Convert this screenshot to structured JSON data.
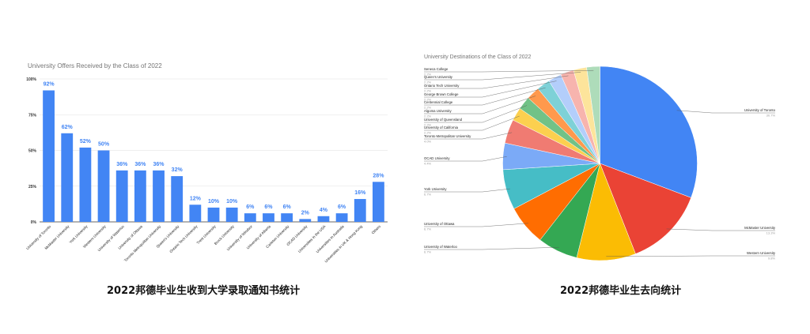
{
  "captions": {
    "left": "2022邦德毕业生收到大学录取通知书统计",
    "right": "2022邦德毕业生去向统计"
  },
  "chart_data": [
    {
      "type": "bar",
      "title": "University Offers Received by the Class of 2022",
      "categories": [
        "University of Toronto",
        "McMaster University",
        "York University",
        "Western University",
        "University of Waterloo",
        "University of Ottawa",
        "Toronto Metropolitan University",
        "Queen's University",
        "Ontario Tech University",
        "Trent University",
        "Brock University",
        "University of Windsor",
        "University of Alberta",
        "Carleton University",
        "OCAD University",
        "Universities in the USA",
        "Universities in Australia",
        "Universities in UK & Hong Kong",
        "Others"
      ],
      "values": [
        92,
        62,
        52,
        50,
        36,
        36,
        36,
        32,
        12,
        10,
        10,
        6,
        6,
        6,
        2,
        4,
        6,
        16,
        28
      ],
      "data_labels": [
        "92%",
        "62%",
        "52%",
        "50%",
        "36%",
        "36%",
        "36%",
        "32%",
        "12%",
        "10%",
        "10%",
        "6%",
        "6%",
        "6%",
        "2%",
        "4%",
        "6%",
        "16%",
        "28%"
      ],
      "yticks": [
        "0%",
        "25%",
        "50%",
        "75%",
        "100%"
      ],
      "ylim": [
        0,
        100
      ],
      "grid": true,
      "color": "#4285f4",
      "label_color": "#4285f4"
    },
    {
      "type": "pie",
      "title": "University Destinations of the Class of 2022",
      "start": "top",
      "slices": [
        {
          "label": "University of Toronto",
          "pct_text": "30.7%",
          "value": 30.7,
          "color": "#4285f4",
          "side": "right"
        },
        {
          "label": "McMaster University",
          "pct_text": "13.3%",
          "value": 13.3,
          "color": "#ea4335",
          "side": "right"
        },
        {
          "label": "Western University",
          "pct_text": "9.8%",
          "value": 9.8,
          "color": "#fbbc04",
          "side": "right"
        },
        {
          "label": "University of Waterloo",
          "pct_text": "6.7%",
          "value": 6.7,
          "color": "#34a853",
          "side": "left"
        },
        {
          "label": "University of Ottawa",
          "pct_text": "6.7%",
          "value": 6.7,
          "color": "#ff6d01",
          "side": "left"
        },
        {
          "label": "York University",
          "pct_text": "6.7%",
          "value": 6.7,
          "color": "#46bdc6",
          "side": "left"
        },
        {
          "label": "OCAD University",
          "pct_text": "4.4%",
          "value": 4.4,
          "color": "#7baaf7",
          "side": "left"
        },
        {
          "label": "Toronto Metropolitan University",
          "pct_text": "4.0%",
          "value": 4.0,
          "color": "#f07b72",
          "side": "left"
        },
        {
          "label": "University of California",
          "pct_text": "2.2%",
          "value": 2.2,
          "color": "#fcd04f",
          "side": "left"
        },
        {
          "label": "University of Queensland",
          "pct_text": "2.2%",
          "value": 2.2,
          "color": "#71c287",
          "side": "left"
        },
        {
          "label": "Algoma University",
          "pct_text": "2.2%",
          "value": 2.2,
          "color": "#ff994d",
          "side": "left"
        },
        {
          "label": "Centennial College",
          "pct_text": "2.2%",
          "value": 2.2,
          "color": "#7ed1d7",
          "side": "left"
        },
        {
          "label": "George Brown College",
          "pct_text": "2.2%",
          "value": 2.2,
          "color": "#b3cefb",
          "side": "left"
        },
        {
          "label": "Ontario Tech University",
          "pct_text": "2.2%",
          "value": 2.2,
          "color": "#f7b4ae",
          "side": "left"
        },
        {
          "label": "Queen's University",
          "pct_text": "2.2%",
          "value": 2.2,
          "color": "#fde49b",
          "side": "left"
        },
        {
          "label": "Seneca College",
          "pct_text": "2.2%",
          "value": 2.2,
          "color": "#aedcba",
          "side": "left"
        }
      ]
    }
  ]
}
